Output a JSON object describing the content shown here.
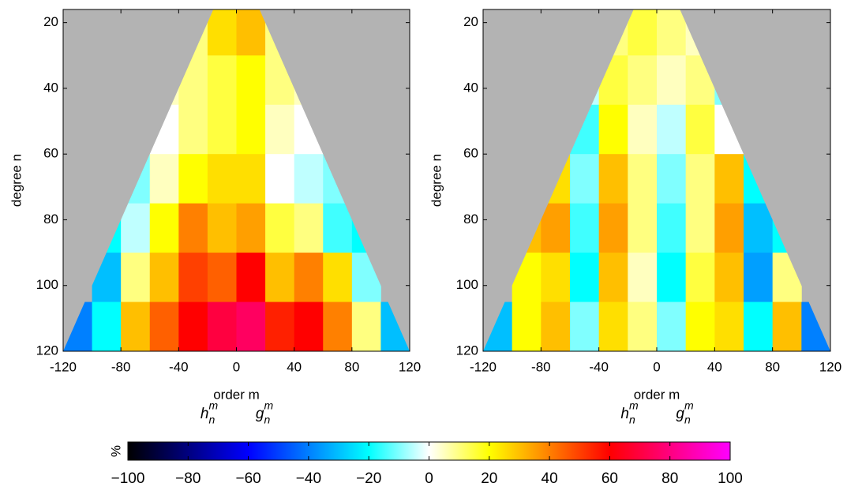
{
  "chart_data": [
    {
      "type": "heatmap",
      "ylabel": "degree n",
      "xlabel": "order m",
      "left_label": {
        "base": "h",
        "sup": "m",
        "sub": "n"
      },
      "right_label": {
        "base": "g",
        "sup": "m",
        "sub": "n"
      },
      "xlim": [
        -120,
        120
      ],
      "ylim": [
        16,
        120
      ],
      "y_reversed": true,
      "xticks": [
        -120,
        -80,
        -40,
        0,
        40,
        80,
        120
      ],
      "yticks": [
        20,
        40,
        60,
        80,
        100,
        120
      ],
      "background": "#b3b3b3",
      "xbins": [
        -120,
        -100,
        -80,
        -60,
        -40,
        -20,
        0,
        20,
        40,
        60,
        80,
        100,
        120
      ],
      "ybins": [
        16,
        30,
        45,
        60,
        75,
        90,
        105,
        120
      ],
      "z": [
        [
          null,
          null,
          null,
          null,
          10,
          25,
          30,
          10,
          null,
          null,
          null,
          null
        ],
        [
          null,
          null,
          null,
          5,
          10,
          15,
          20,
          10,
          5,
          null,
          null,
          null
        ],
        [
          null,
          null,
          null,
          0,
          10,
          15,
          20,
          5,
          0,
          null,
          null,
          null
        ],
        [
          null,
          null,
          -10,
          5,
          20,
          25,
          25,
          0,
          -5,
          -10,
          null,
          null
        ],
        [
          null,
          -20,
          -5,
          20,
          40,
          30,
          35,
          15,
          10,
          -15,
          -20,
          null
        ],
        [
          null,
          -30,
          10,
          30,
          50,
          45,
          60,
          30,
          40,
          25,
          -10,
          null
        ],
        [
          -40,
          -20,
          30,
          45,
          60,
          70,
          75,
          55,
          60,
          40,
          10,
          -30
        ]
      ]
    },
    {
      "type": "heatmap",
      "ylabel": "degree n",
      "xlabel": "order m",
      "left_label": {
        "base": "h",
        "sup": "m",
        "sub": "n"
      },
      "right_label": {
        "base": "g",
        "sup": "m",
        "sub": "n"
      },
      "xlim": [
        -120,
        120
      ],
      "ylim": [
        16,
        120
      ],
      "y_reversed": true,
      "xticks": [
        -120,
        -80,
        -40,
        0,
        40,
        80,
        120
      ],
      "yticks": [
        20,
        40,
        60,
        80,
        100,
        120
      ],
      "background": "#b3b3b3",
      "xbins": [
        -120,
        -100,
        -80,
        -60,
        -40,
        -20,
        0,
        20,
        40,
        60,
        80,
        100,
        120
      ],
      "ybins": [
        16,
        30,
        45,
        60,
        75,
        90,
        105,
        120
      ],
      "z": [
        [
          null,
          null,
          null,
          null,
          10,
          15,
          10,
          5,
          null,
          null,
          null,
          null
        ],
        [
          null,
          null,
          null,
          -5,
          15,
          10,
          5,
          10,
          -10,
          null,
          null,
          null
        ],
        [
          null,
          null,
          null,
          -15,
          20,
          5,
          -5,
          15,
          0,
          null,
          null,
          null
        ],
        [
          null,
          null,
          25,
          -10,
          30,
          10,
          -10,
          10,
          30,
          -20,
          null,
          null
        ],
        [
          null,
          30,
          35,
          -15,
          35,
          10,
          -15,
          10,
          35,
          -30,
          -20,
          null
        ],
        [
          null,
          20,
          25,
          -20,
          30,
          5,
          -20,
          15,
          30,
          -35,
          10,
          null
        ],
        [
          -30,
          20,
          30,
          -10,
          25,
          10,
          -10,
          20,
          25,
          -20,
          30,
          -40
        ]
      ]
    },
    {
      "type": "colorbar",
      "label": "%",
      "clim": [
        -100,
        100
      ],
      "ticks": [
        {
          "value": -100,
          "label": "−100"
        },
        {
          "value": -80,
          "label": "−80"
        },
        {
          "value": -60,
          "label": "−60"
        },
        {
          "value": -40,
          "label": "−40"
        },
        {
          "value": -20,
          "label": "−20"
        },
        0,
        20,
        40,
        60,
        80,
        100
      ],
      "colormap": [
        {
          "value": -100,
          "color": "#000000"
        },
        {
          "value": -60,
          "color": "#0000ff"
        },
        {
          "value": -20,
          "color": "#00ffff"
        },
        {
          "value": 0,
          "color": "#ffffff"
        },
        {
          "value": 20,
          "color": "#ffff00"
        },
        {
          "value": 60,
          "color": "#ff0000"
        },
        {
          "value": 100,
          "color": "#ff00ff"
        }
      ]
    }
  ]
}
